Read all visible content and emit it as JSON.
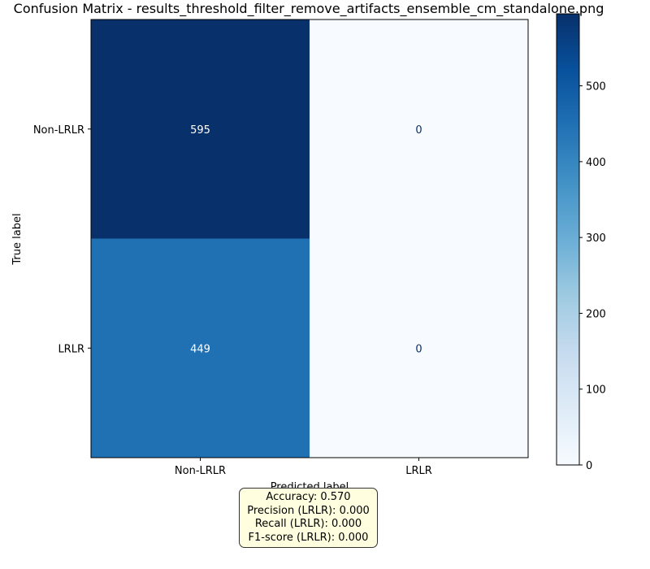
{
  "chart_data": {
    "type": "heatmap",
    "title": "Confusion Matrix - results_threshold_filter_remove_artifacts_ensemble_cm_standalone.png",
    "xlabel": "Predicted label",
    "ylabel": "True label",
    "x_categories": [
      "Non-LRLR",
      "LRLR"
    ],
    "y_categories": [
      "Non-LRLR",
      "LRLR"
    ],
    "values": [
      [
        595,
        0
      ],
      [
        449,
        0
      ]
    ],
    "colormap": "Blues",
    "colorbar": {
      "min": 0,
      "max": 595,
      "ticks": [
        0,
        100,
        200,
        300,
        400,
        500
      ]
    },
    "grid": false
  },
  "metrics": {
    "accuracy": "Accuracy: 0.570",
    "precision": "Precision (LRLR): 0.000",
    "recall": "Recall (LRLR): 0.000",
    "f1": "F1-score (LRLR): 0.000"
  },
  "colors": {
    "cell_dark": "#08306b",
    "cell_mid": "#2070b4",
    "cell_light": "#f7fbff",
    "text_on_dark": "#ffffff",
    "text_on_light": "#08306b",
    "metrics_box_bg": "#ffffe0"
  }
}
